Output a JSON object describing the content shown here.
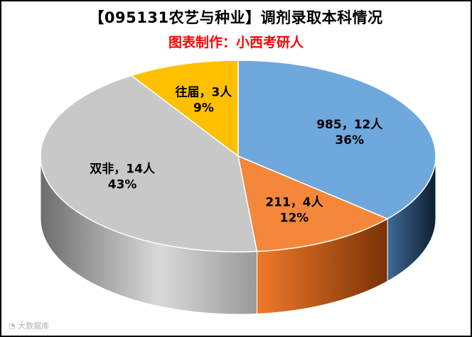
{
  "chart_data": {
    "type": "pie",
    "title": "【095131农艺与种业】调剂录取本科情况",
    "subtitle": "图表制作：小西考研人",
    "slices": [
      {
        "label": "985",
        "count": "12人",
        "value": 12,
        "percent": "36%",
        "color": "#6fa8dc"
      },
      {
        "label": "211",
        "count": "4人",
        "value": 4,
        "percent": "12%",
        "color": "#f5873a"
      },
      {
        "label": "双非",
        "count": "14人",
        "value": 14,
        "percent": "43%",
        "color": "#c8c8c8"
      },
      {
        "label": "往届",
        "count": "3人",
        "value": 3,
        "percent": "9%",
        "color": "#ffc000"
      }
    ],
    "separator": "，",
    "legend": "none"
  },
  "watermark": {
    "icon": "weibo-icon",
    "text": "大数据库"
  }
}
